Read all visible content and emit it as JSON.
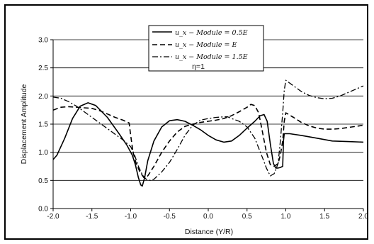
{
  "chart_data": {
    "type": "line",
    "title": "",
    "xlabel": "Distance (Y/R)",
    "ylabel": "Displacement Amplitude",
    "xlim": [
      -2.0,
      2.0
    ],
    "ylim": [
      0.0,
      3.0
    ],
    "x_ticks": [
      "-2.0",
      "-1.5",
      "-1.0",
      "-0.5",
      "0.0",
      "0.5",
      "1.0",
      "1.5",
      "2.0"
    ],
    "y_ticks": [
      "0.0",
      "0.5",
      "1.0",
      "1.5",
      "2.0",
      "2.5",
      "3.0"
    ],
    "grid": "horizontal",
    "legend_position": "top-center",
    "annotation": "η=1",
    "series": [
      {
        "name": "u_x − Module = 0.5E",
        "style": "solid",
        "points": [
          [
            -2.0,
            0.87
          ],
          [
            -1.95,
            0.95
          ],
          [
            -1.85,
            1.25
          ],
          [
            -1.75,
            1.6
          ],
          [
            -1.65,
            1.82
          ],
          [
            -1.55,
            1.88
          ],
          [
            -1.45,
            1.83
          ],
          [
            -1.3,
            1.62
          ],
          [
            -1.15,
            1.33
          ],
          [
            -1.05,
            1.13
          ],
          [
            -0.98,
            0.95
          ],
          [
            -0.94,
            0.78
          ],
          [
            -0.9,
            0.55
          ],
          [
            -0.87,
            0.42
          ],
          [
            -0.85,
            0.4
          ],
          [
            -0.82,
            0.55
          ],
          [
            -0.78,
            0.85
          ],
          [
            -0.7,
            1.2
          ],
          [
            -0.6,
            1.45
          ],
          [
            -0.5,
            1.56
          ],
          [
            -0.4,
            1.58
          ],
          [
            -0.3,
            1.55
          ],
          [
            -0.2,
            1.48
          ],
          [
            -0.1,
            1.4
          ],
          [
            0.0,
            1.3
          ],
          [
            0.1,
            1.22
          ],
          [
            0.2,
            1.18
          ],
          [
            0.3,
            1.2
          ],
          [
            0.4,
            1.3
          ],
          [
            0.5,
            1.43
          ],
          [
            0.6,
            1.55
          ],
          [
            0.67,
            1.65
          ],
          [
            0.72,
            1.67
          ],
          [
            0.76,
            1.55
          ],
          [
            0.8,
            1.15
          ],
          [
            0.84,
            0.8
          ],
          [
            0.87,
            0.72
          ],
          [
            0.9,
            0.72
          ],
          [
            0.93,
            0.73
          ],
          [
            0.96,
            0.75
          ],
          [
            0.97,
            1.2
          ],
          [
            0.98,
            1.33
          ],
          [
            1.05,
            1.33
          ],
          [
            1.2,
            1.3
          ],
          [
            1.4,
            1.25
          ],
          [
            1.6,
            1.2
          ],
          [
            1.8,
            1.19
          ],
          [
            2.0,
            1.18
          ]
        ]
      },
      {
        "name": "u_x − Module = E",
        "style": "dashed",
        "points": [
          [
            -2.0,
            1.75
          ],
          [
            -1.9,
            1.8
          ],
          [
            -1.8,
            1.81
          ],
          [
            -1.7,
            1.8
          ],
          [
            -1.6,
            1.79
          ],
          [
            -1.5,
            1.78
          ],
          [
            -1.4,
            1.74
          ],
          [
            -1.3,
            1.68
          ],
          [
            -1.2,
            1.62
          ],
          [
            -1.1,
            1.57
          ],
          [
            -1.02,
            1.52
          ],
          [
            -1.0,
            1.3
          ],
          [
            -0.97,
            1.0
          ],
          [
            -0.93,
            0.8
          ],
          [
            -0.88,
            0.65
          ],
          [
            -0.83,
            0.55
          ],
          [
            -0.78,
            0.58
          ],
          [
            -0.7,
            0.75
          ],
          [
            -0.6,
            1.0
          ],
          [
            -0.5,
            1.2
          ],
          [
            -0.4,
            1.36
          ],
          [
            -0.3,
            1.46
          ],
          [
            -0.2,
            1.5
          ],
          [
            -0.1,
            1.53
          ],
          [
            0.0,
            1.55
          ],
          [
            0.1,
            1.57
          ],
          [
            0.2,
            1.6
          ],
          [
            0.3,
            1.65
          ],
          [
            0.4,
            1.72
          ],
          [
            0.5,
            1.8
          ],
          [
            0.55,
            1.85
          ],
          [
            0.6,
            1.83
          ],
          [
            0.65,
            1.7
          ],
          [
            0.7,
            1.35
          ],
          [
            0.75,
            1.0
          ],
          [
            0.8,
            0.78
          ],
          [
            0.85,
            0.75
          ],
          [
            0.9,
            0.8
          ],
          [
            0.93,
            0.95
          ],
          [
            0.96,
            1.2
          ],
          [
            0.98,
            1.55
          ],
          [
            1.0,
            1.7
          ],
          [
            1.1,
            1.62
          ],
          [
            1.2,
            1.53
          ],
          [
            1.3,
            1.47
          ],
          [
            1.4,
            1.43
          ],
          [
            1.5,
            1.41
          ],
          [
            1.6,
            1.41
          ],
          [
            1.7,
            1.42
          ],
          [
            1.8,
            1.44
          ],
          [
            1.9,
            1.46
          ],
          [
            2.0,
            1.48
          ]
        ]
      },
      {
        "name": "u_x − Module = 1.5E",
        "style": "dash-dot",
        "points": [
          [
            -2.0,
            1.98
          ],
          [
            -1.9,
            1.96
          ],
          [
            -1.8,
            1.9
          ],
          [
            -1.7,
            1.82
          ],
          [
            -1.6,
            1.72
          ],
          [
            -1.5,
            1.62
          ],
          [
            -1.4,
            1.52
          ],
          [
            -1.3,
            1.42
          ],
          [
            -1.2,
            1.32
          ],
          [
            -1.1,
            1.22
          ],
          [
            -1.0,
            1.1
          ],
          [
            -0.95,
            0.95
          ],
          [
            -0.9,
            0.75
          ],
          [
            -0.85,
            0.6
          ],
          [
            -0.8,
            0.52
          ],
          [
            -0.75,
            0.5
          ],
          [
            -0.7,
            0.52
          ],
          [
            -0.6,
            0.65
          ],
          [
            -0.5,
            0.82
          ],
          [
            -0.4,
            1.05
          ],
          [
            -0.3,
            1.3
          ],
          [
            -0.2,
            1.48
          ],
          [
            -0.1,
            1.57
          ],
          [
            0.0,
            1.6
          ],
          [
            0.1,
            1.62
          ],
          [
            0.2,
            1.63
          ],
          [
            0.25,
            1.63
          ],
          [
            0.3,
            1.6
          ],
          [
            0.4,
            1.55
          ],
          [
            0.5,
            1.45
          ],
          [
            0.6,
            1.25
          ],
          [
            0.7,
            0.9
          ],
          [
            0.75,
            0.72
          ],
          [
            0.8,
            0.58
          ],
          [
            0.85,
            0.62
          ],
          [
            0.9,
            0.8
          ],
          [
            0.93,
            1.2
          ],
          [
            0.96,
            1.7
          ],
          [
            0.98,
            2.1
          ],
          [
            1.0,
            2.28
          ],
          [
            1.1,
            2.18
          ],
          [
            1.2,
            2.08
          ],
          [
            1.3,
            2.01
          ],
          [
            1.4,
            1.97
          ],
          [
            1.5,
            1.95
          ],
          [
            1.6,
            1.96
          ],
          [
            1.7,
            2.0
          ],
          [
            1.8,
            2.06
          ],
          [
            1.9,
            2.12
          ],
          [
            2.0,
            2.18
          ]
        ]
      }
    ]
  }
}
